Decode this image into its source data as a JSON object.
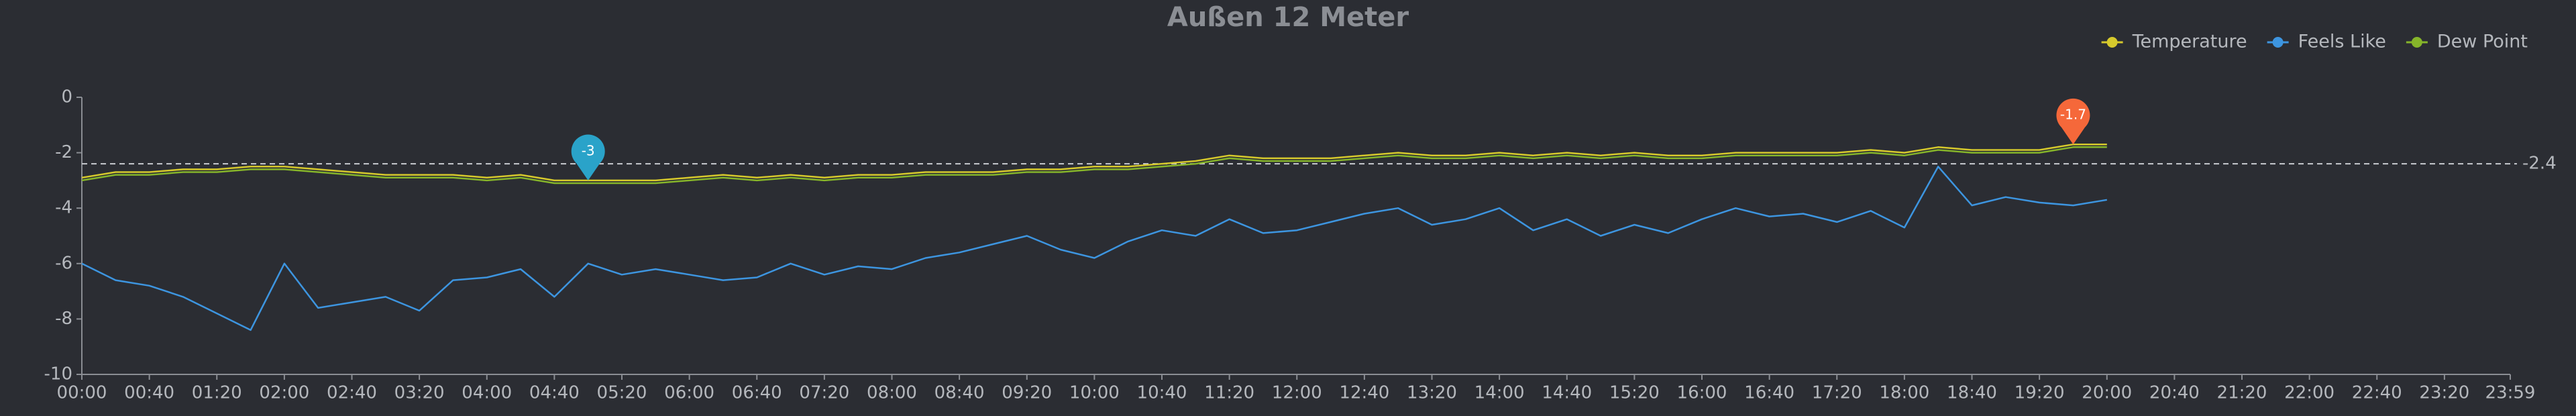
{
  "chart_data": {
    "type": "line",
    "title": "Außen 12 Meter",
    "legend": "top-right",
    "x": [
      "00:00",
      "00:20",
      "00:40",
      "01:00",
      "01:20",
      "01:40",
      "02:00",
      "02:20",
      "02:40",
      "03:00",
      "03:20",
      "03:40",
      "04:00",
      "04:20",
      "04:40",
      "05:00",
      "05:20",
      "05:40",
      "06:00",
      "06:20",
      "06:40",
      "07:00",
      "07:20",
      "07:40",
      "08:00",
      "08:20",
      "08:40",
      "09:00",
      "09:20",
      "09:40",
      "10:00",
      "10:20",
      "10:40",
      "11:00",
      "11:20",
      "11:40",
      "12:00",
      "12:20",
      "12:40",
      "13:00",
      "13:20",
      "13:40",
      "14:00",
      "14:20",
      "14:40",
      "15:00",
      "15:20",
      "15:40",
      "16:00",
      "16:20",
      "16:40",
      "17:00",
      "17:20",
      "17:40",
      "18:00",
      "18:20",
      "18:40",
      "19:00",
      "19:20",
      "19:40",
      "20:00"
    ],
    "series": [
      {
        "name": "Temperature",
        "color": "#d6c92c",
        "values": [
          -2.9,
          -2.7,
          -2.7,
          -2.6,
          -2.6,
          -2.5,
          -2.5,
          -2.6,
          -2.7,
          -2.8,
          -2.8,
          -2.8,
          -2.9,
          -2.8,
          -3.0,
          -3.0,
          -3.0,
          -3.0,
          -2.9,
          -2.8,
          -2.9,
          -2.8,
          -2.9,
          -2.8,
          -2.8,
          -2.7,
          -2.7,
          -2.7,
          -2.6,
          -2.6,
          -2.5,
          -2.5,
          -2.4,
          -2.3,
          -2.1,
          -2.2,
          -2.2,
          -2.2,
          -2.1,
          -2.0,
          -2.1,
          -2.1,
          -2.0,
          -2.1,
          -2.0,
          -2.1,
          -2.0,
          -2.1,
          -2.1,
          -2.0,
          -2.0,
          -2.0,
          -2.0,
          -1.9,
          -2.0,
          -1.8,
          -1.9,
          -1.9,
          -1.9,
          -1.7,
          -1.7
        ]
      },
      {
        "name": "Feels Like",
        "color": "#3d95e0",
        "values": [
          -6.0,
          -6.6,
          -6.8,
          -7.2,
          -7.8,
          -8.4,
          -6.0,
          -7.6,
          -7.4,
          -7.2,
          -7.7,
          -6.6,
          -6.5,
          -6.2,
          -7.2,
          -6.0,
          -6.4,
          -6.2,
          -6.4,
          -6.6,
          -6.5,
          -6.0,
          -6.4,
          -6.1,
          -6.2,
          -5.8,
          -5.6,
          -5.3,
          -5.0,
          -5.5,
          -5.8,
          -5.2,
          -4.8,
          -5.0,
          -4.4,
          -4.9,
          -4.8,
          -4.5,
          -4.2,
          -4.0,
          -4.6,
          -4.4,
          -4.0,
          -4.8,
          -4.4,
          -5.0,
          -4.6,
          -4.9,
          -4.4,
          -4.0,
          -4.3,
          -4.2,
          -4.5,
          -4.1,
          -4.7,
          -2.5,
          -3.9,
          -3.6,
          -3.8,
          -3.9,
          -3.7
        ]
      },
      {
        "name": "Dew Point",
        "color": "#86b52a",
        "values": [
          -3.0,
          -2.8,
          -2.8,
          -2.7,
          -2.7,
          -2.6,
          -2.6,
          -2.7,
          -2.8,
          -2.9,
          -2.9,
          -2.9,
          -3.0,
          -2.9,
          -3.1,
          -3.1,
          -3.1,
          -3.1,
          -3.0,
          -2.9,
          -3.0,
          -2.9,
          -3.0,
          -2.9,
          -2.9,
          -2.8,
          -2.8,
          -2.8,
          -2.7,
          -2.7,
          -2.6,
          -2.6,
          -2.5,
          -2.4,
          -2.2,
          -2.3,
          -2.3,
          -2.3,
          -2.2,
          -2.1,
          -2.2,
          -2.2,
          -2.1,
          -2.2,
          -2.1,
          -2.2,
          -2.1,
          -2.2,
          -2.2,
          -2.1,
          -2.1,
          -2.1,
          -2.1,
          -2.0,
          -2.1,
          -1.9,
          -2.0,
          -2.0,
          -2.0,
          -1.8,
          -1.8
        ]
      }
    ],
    "mark_points": [
      {
        "x": "05:00",
        "value": -3,
        "color": "#2aa3c9"
      },
      {
        "x": "19:40",
        "value": -1.7,
        "color": "#f5683a"
      }
    ],
    "mark_line": {
      "value": -2.4
    },
    "xlim": [
      "00:00",
      "23:59"
    ],
    "xticks": [
      "00:00",
      "00:40",
      "01:20",
      "02:00",
      "02:40",
      "03:20",
      "04:00",
      "04:40",
      "05:20",
      "06:00",
      "06:40",
      "07:20",
      "08:00",
      "08:40",
      "09:20",
      "10:00",
      "10:40",
      "11:20",
      "12:00",
      "12:40",
      "13:20",
      "14:00",
      "14:40",
      "15:20",
      "16:00",
      "16:40",
      "17:20",
      "18:00",
      "18:40",
      "19:20",
      "20:00",
      "20:40",
      "21:20",
      "22:00",
      "22:40",
      "23:20",
      "23:59"
    ],
    "ylim": [
      -10,
      0
    ],
    "yticks": [
      0,
      -2,
      -4,
      -6,
      -8,
      -10
    ]
  }
}
